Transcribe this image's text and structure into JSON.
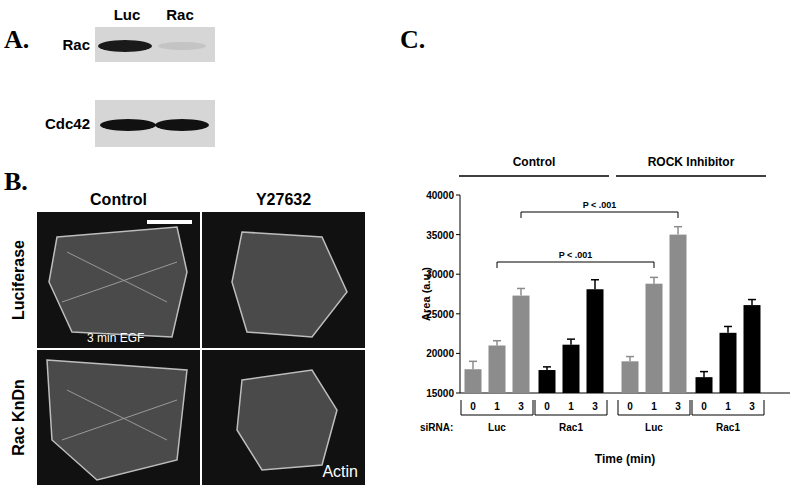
{
  "panel_a": {
    "label": "A.",
    "lanes": [
      "Luc",
      "Rac"
    ],
    "rows": [
      "Rac",
      "Cdc42"
    ]
  },
  "panel_b": {
    "label": "B.",
    "columns": [
      "Control",
      "Y27632"
    ],
    "rows": [
      "Luciferase",
      "Rac KnDn"
    ],
    "image_labels": [
      "3 min EGF",
      "Actin"
    ]
  },
  "chart_data": {
    "label": "C.",
    "type": "bar",
    "y_label": "Area (a.u.)",
    "x_label": "Time (min)",
    "categories": [
      "0",
      "1",
      "3",
      "0",
      "1",
      "3",
      "0",
      "1",
      "3",
      "0",
      "1",
      "3"
    ],
    "values": [
      18000,
      21000,
      27300,
      17900,
      21100,
      28100,
      19000,
      28800,
      35000,
      17000,
      22600,
      26100
    ],
    "errors": [
      1000,
      600,
      900,
      400,
      700,
      1200,
      600,
      800,
      1000,
      700,
      800,
      700
    ],
    "colors": [
      "#8c8c8c",
      "#8c8c8c",
      "#8c8c8c",
      "#000000",
      "#000000",
      "#000000",
      "#8c8c8c",
      "#8c8c8c",
      "#8c8c8c",
      "#000000",
      "#000000",
      "#000000"
    ],
    "ylim": [
      15000,
      40000
    ],
    "yticks": [
      15000,
      20000,
      25000,
      30000,
      35000,
      40000
    ],
    "group_title": "siRNA:",
    "groups": [
      "Luc",
      "Rac1",
      "Luc",
      "Rac1"
    ],
    "treatments": [
      "Control",
      "ROCK Inhibitor"
    ],
    "annotations": [
      {
        "text": "P < .001",
        "from": 2,
        "to": 8
      },
      {
        "text": "P < .001",
        "from": 1,
        "to": 7
      }
    ]
  }
}
